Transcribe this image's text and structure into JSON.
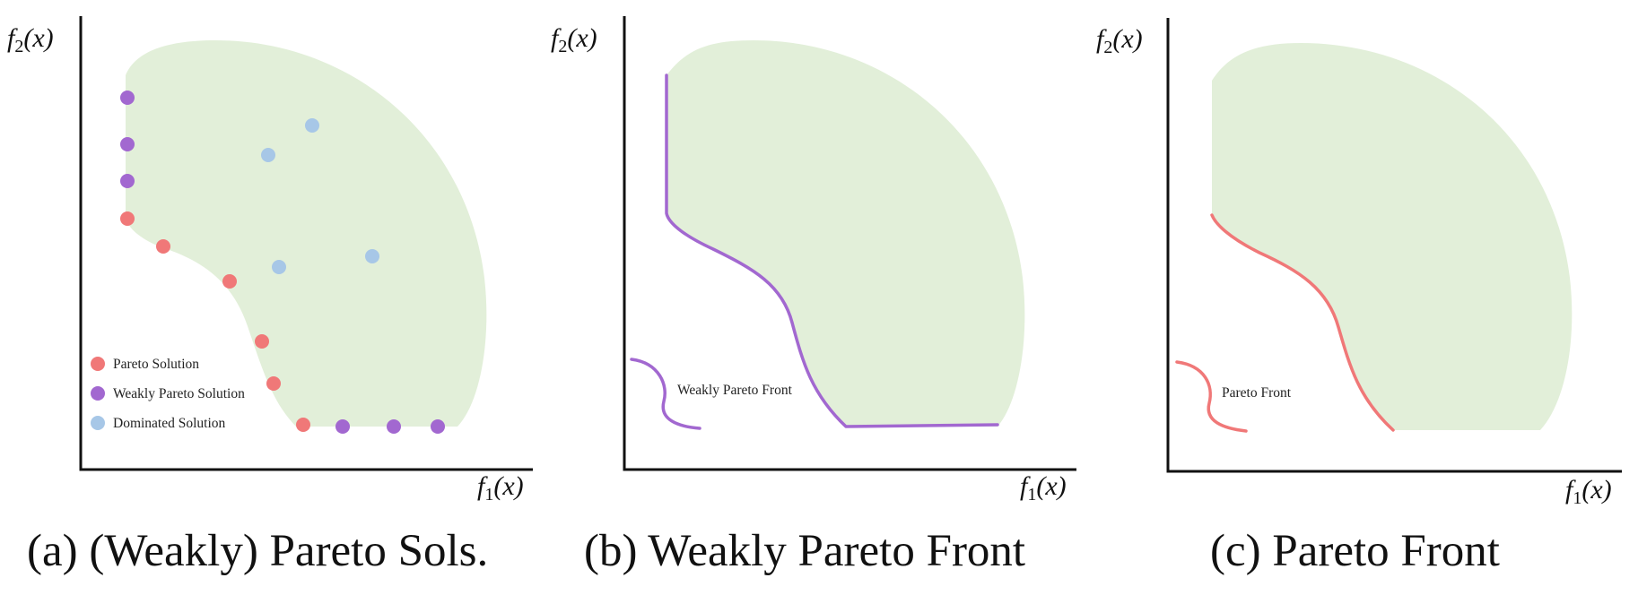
{
  "colors": {
    "feasible_region": "#e2efd9",
    "pareto": "#f07878",
    "weakly_pareto": "#a268d0",
    "dominated": "#a7c7e7",
    "axis": "#111111"
  },
  "axis_labels": {
    "f1": "f",
    "f1_sub": "1",
    "f2": "f",
    "f2_sub": "2",
    "arg": "(x)"
  },
  "panels": [
    {
      "caption": "(a) (Weakly) Pareto Sols.",
      "legend": [
        {
          "label": "Pareto Solution",
          "series": "pareto"
        },
        {
          "label": "Weakly Pareto Solution",
          "series": "weakly_pareto"
        },
        {
          "label": "Dominated Solution",
          "series": "dominated"
        }
      ]
    },
    {
      "caption": "(b) Weakly Pareto Front",
      "curve_label": "Weakly Pareto Front"
    },
    {
      "caption": "(c) Pareto Front",
      "curve_label": "Pareto Front"
    }
  ]
}
